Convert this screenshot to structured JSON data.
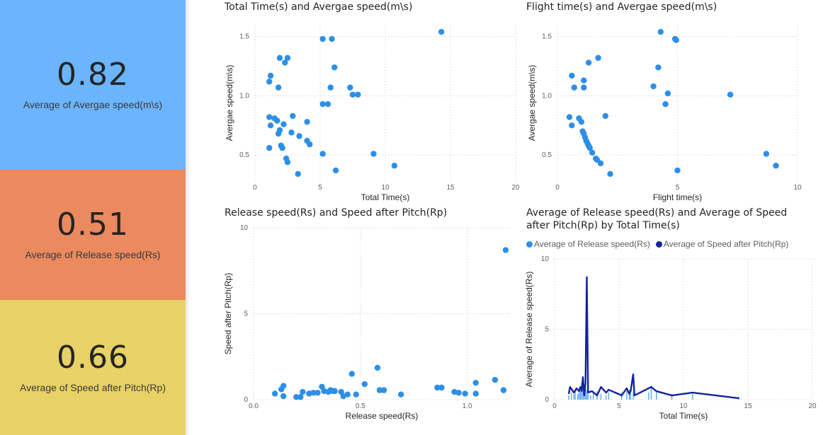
{
  "kpis": [
    {
      "value": "0.82",
      "label": "Average of Avergae speed(m\\s)",
      "color": "#6bb5ff"
    },
    {
      "value": "0.51",
      "label": "Average of Release speed(Rs)",
      "color": "#eb895f"
    },
    {
      "value": "0.66",
      "label": "Average of Speed after Pitch(Rp)",
      "color": "#e8d166"
    }
  ],
  "colors": {
    "point": "#2d8fe6",
    "line": "#12239e",
    "bar": "#5aa9f0",
    "grid": "#c8c6c4"
  },
  "chart_data": [
    {
      "type": "scatter",
      "title": "Total Time(s) and Avergae speed(m\\s)",
      "xlabel": "Total Time(s)",
      "ylabel": "Avergae speed(m\\s)",
      "xlim": [
        0,
        20
      ],
      "ylim": [
        0.28,
        1.6
      ],
      "xticks": [
        "0",
        "5",
        "10",
        "15",
        "20"
      ],
      "yticks": [
        "0.5",
        "1.0",
        "1.5"
      ],
      "ytick_values": [
        0.5,
        1.0,
        1.5
      ],
      "points": [
        [
          14.3,
          1.54
        ],
        [
          5.2,
          1.48
        ],
        [
          5.9,
          1.48
        ],
        [
          1.9,
          1.32
        ],
        [
          2.5,
          1.32
        ],
        [
          2.3,
          1.28
        ],
        [
          6.1,
          1.24
        ],
        [
          1.2,
          1.17
        ],
        [
          1.1,
          1.12
        ],
        [
          1.8,
          1.07
        ],
        [
          5.8,
          1.07
        ],
        [
          7.3,
          1.07
        ],
        [
          7.5,
          1.01
        ],
        [
          7.9,
          1.01
        ],
        [
          5.2,
          0.93
        ],
        [
          5.6,
          0.93
        ],
        [
          1.1,
          0.82
        ],
        [
          1.5,
          0.81
        ],
        [
          2.9,
          0.83
        ],
        [
          1.7,
          0.79
        ],
        [
          4.0,
          0.78
        ],
        [
          1.2,
          0.75
        ],
        [
          2.2,
          0.76
        ],
        [
          1.9,
          0.71
        ],
        [
          1.8,
          0.68
        ],
        [
          2.8,
          0.69
        ],
        [
          3.4,
          0.66
        ],
        [
          4.0,
          0.62
        ],
        [
          4.2,
          0.59
        ],
        [
          2.0,
          0.58
        ],
        [
          2.1,
          0.56
        ],
        [
          1.1,
          0.56
        ],
        [
          5.2,
          0.51
        ],
        [
          9.1,
          0.51
        ],
        [
          2.4,
          0.47
        ],
        [
          2.5,
          0.44
        ],
        [
          10.7,
          0.41
        ],
        [
          6.2,
          0.37
        ],
        [
          3.3,
          0.34
        ]
      ]
    },
    {
      "type": "scatter",
      "title": "Flight time(s) and Avergae speed(m\\s)",
      "xlabel": "Flight time(s)",
      "ylabel": "Avergae speed(m\\s)",
      "xlim": [
        0,
        10
      ],
      "ylim": [
        0.28,
        1.6
      ],
      "xticks": [
        "0",
        "5",
        "10"
      ],
      "yticks": [
        "0.5",
        "1.0",
        "1.5"
      ],
      "ytick_values": [
        0.5,
        1.0,
        1.5
      ],
      "points": [
        [
          4.3,
          1.54
        ],
        [
          4.9,
          1.48
        ],
        [
          4.95,
          1.47
        ],
        [
          1.7,
          1.32
        ],
        [
          1.3,
          1.28
        ],
        [
          4.2,
          1.24
        ],
        [
          0.6,
          1.17
        ],
        [
          1.1,
          1.13
        ],
        [
          0.7,
          1.07
        ],
        [
          1.1,
          1.07
        ],
        [
          4.0,
          1.08
        ],
        [
          4.6,
          1.02
        ],
        [
          7.2,
          1.01
        ],
        [
          4.5,
          0.93
        ],
        [
          0.5,
          0.82
        ],
        [
          0.9,
          0.81
        ],
        [
          1.0,
          0.78
        ],
        [
          2.0,
          0.83
        ],
        [
          0.6,
          0.75
        ],
        [
          1.05,
          0.7
        ],
        [
          1.1,
          0.68
        ],
        [
          1.15,
          0.65
        ],
        [
          1.2,
          0.62
        ],
        [
          1.25,
          0.6
        ],
        [
          1.3,
          0.58
        ],
        [
          1.35,
          0.56
        ],
        [
          1.45,
          0.52
        ],
        [
          1.6,
          0.47
        ],
        [
          1.65,
          0.46
        ],
        [
          1.8,
          0.43
        ],
        [
          2.2,
          0.34
        ],
        [
          5.0,
          0.37
        ],
        [
          8.7,
          0.51
        ],
        [
          9.1,
          0.41
        ]
      ]
    },
    {
      "type": "scatter",
      "title": "Release speed(Rs) and Speed after Pitch(Rp)",
      "xlabel": "Release speed(Rs)",
      "ylabel": "Speed after Pitch(Rp)",
      "xlim": [
        0,
        1.2
      ],
      "ylim": [
        0,
        10
      ],
      "xticks": [
        "0.0",
        "0.5",
        "1.0"
      ],
      "xtick_values": [
        0,
        0.5,
        1.0
      ],
      "yticks": [
        "0",
        "5",
        "10"
      ],
      "ytick_values": [
        0,
        5,
        10
      ],
      "points": [
        [
          1.18,
          8.7
        ],
        [
          0.58,
          1.85
        ],
        [
          0.46,
          1.5
        ],
        [
          1.13,
          1.15
        ],
        [
          1.04,
          0.98
        ],
        [
          0.52,
          0.9
        ],
        [
          0.14,
          0.8
        ],
        [
          0.32,
          0.75
        ],
        [
          0.36,
          0.55
        ],
        [
          0.86,
          0.7
        ],
        [
          0.88,
          0.7
        ],
        [
          0.13,
          0.6
        ],
        [
          0.33,
          0.5
        ],
        [
          0.37,
          0.5
        ],
        [
          0.38,
          0.5
        ],
        [
          0.41,
          0.45
        ],
        [
          0.59,
          0.55
        ],
        [
          0.61,
          0.55
        ],
        [
          0.94,
          0.45
        ],
        [
          0.96,
          0.4
        ],
        [
          0.99,
          0.35
        ],
        [
          1.04,
          0.35
        ],
        [
          1.17,
          0.55
        ],
        [
          0.1,
          0.35
        ],
        [
          0.23,
          0.45
        ],
        [
          0.26,
          0.35
        ],
        [
          0.28,
          0.4
        ],
        [
          0.44,
          0.3
        ],
        [
          0.48,
          0.3
        ],
        [
          0.69,
          0.3
        ],
        [
          0.14,
          0.2
        ],
        [
          0.22,
          0.15
        ],
        [
          0.3,
          0.4
        ],
        [
          0.35,
          0.45
        ],
        [
          0.42,
          0.2
        ],
        [
          0.2,
          0.15
        ]
      ]
    },
    {
      "type": "line",
      "title": "Average of Release speed(Rs) and Average of Speed after Pitch(Rp) by Total Time(s)",
      "xlabel": "Total Time(s)",
      "ylabel": "Average of Release speed(Rs)",
      "xlim": [
        0,
        20
      ],
      "ylim": [
        0,
        10
      ],
      "xticks": [
        "0",
        "5",
        "10",
        "15",
        "20"
      ],
      "yticks": [
        "0",
        "5",
        "10"
      ],
      "ytick_values": [
        0,
        5,
        10
      ],
      "series": [
        {
          "name": "Average of Release speed(Rs)",
          "kind": "bar",
          "x": [
            1.1,
            1.3,
            1.5,
            1.6,
            1.8,
            1.9,
            2.0,
            2.1,
            2.2,
            2.3,
            2.4,
            2.5,
            2.6,
            2.8,
            3.0,
            3.3,
            3.6,
            4.0,
            4.2,
            5.2,
            5.6,
            5.8,
            5.9,
            6.1,
            7.3,
            7.5,
            7.9,
            9.1,
            10.7,
            14.3
          ],
          "values": [
            0.3,
            0.5,
            0.4,
            0.6,
            0.4,
            0.5,
            0.6,
            1.2,
            0.8,
            0.5,
            1.0,
            0.7,
            0.4,
            0.3,
            0.5,
            0.6,
            0.4,
            0.3,
            0.5,
            0.5,
            0.6,
            0.7,
            0.4,
            0.5,
            0.5,
            1.0,
            0.6,
            0.4,
            0.4,
            0.2
          ]
        },
        {
          "name": "Average of Speed after Pitch(Rp)",
          "kind": "line",
          "x": [
            1.1,
            1.2,
            1.5,
            1.7,
            1.9,
            2.0,
            2.1,
            2.2,
            2.3,
            2.4,
            2.5,
            2.6,
            2.9,
            3.3,
            3.6,
            4.0,
            4.2,
            5.2,
            5.6,
            5.8,
            5.9,
            6.1,
            6.2,
            7.5,
            7.9,
            9.1,
            10.7,
            14.3
          ],
          "values": [
            0.4,
            0.9,
            0.5,
            0.8,
            0.6,
            0.9,
            0.6,
            1.6,
            0.3,
            1.2,
            8.7,
            0.5,
            0.6,
            0.3,
            0.9,
            0.5,
            0.7,
            0.3,
            0.8,
            0.4,
            0.6,
            1.8,
            0.3,
            0.9,
            0.6,
            0.3,
            0.5,
            0.1
          ]
        }
      ]
    }
  ]
}
